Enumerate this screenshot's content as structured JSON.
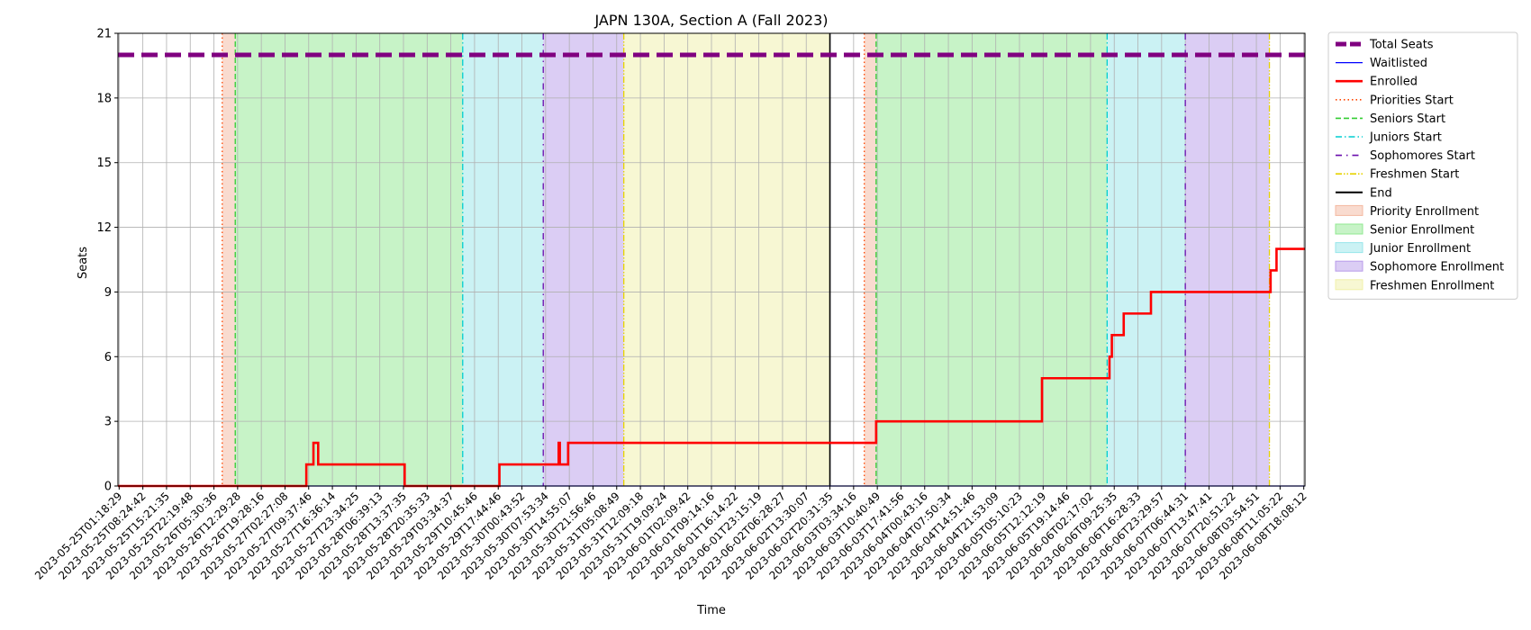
{
  "chart_data": {
    "type": "line",
    "title": "JAPN 130A, Section A (Fall 2023)",
    "xlabel": "Time",
    "ylabel": "Seats",
    "ylim": [
      0,
      21
    ],
    "yticks": [
      0,
      3,
      6,
      9,
      12,
      15,
      18,
      21
    ],
    "x_tick_labels": [
      "2023-05-25T01:18:29",
      "2023-05-25T08:24:42",
      "2023-05-25T15:21:35",
      "2023-05-25T22:19:48",
      "2023-05-26T05:30:36",
      "2023-05-26T12:29:28",
      "2023-05-26T19:28:16",
      "2023-05-27T02:27:08",
      "2023-05-27T09:37:46",
      "2023-05-27T16:36:14",
      "2023-05-27T23:34:25",
      "2023-05-28T06:39:13",
      "2023-05-28T13:37:35",
      "2023-05-28T20:35:33",
      "2023-05-29T03:34:37",
      "2023-05-29T10:45:46",
      "2023-05-29T17:44:46",
      "2023-05-30T00:43:52",
      "2023-05-30T07:53:34",
      "2023-05-30T14:55:07",
      "2023-05-30T21:56:46",
      "2023-05-31T05:08:49",
      "2023-05-31T12:09:18",
      "2023-05-31T19:09:24",
      "2023-06-01T02:09:42",
      "2023-06-01T09:14:16",
      "2023-06-01T16:14:22",
      "2023-06-01T23:15:19",
      "2023-06-02T06:28:27",
      "2023-06-02T13:30:07",
      "2023-06-02T20:31:35",
      "2023-06-03T03:34:16",
      "2023-06-03T10:40:49",
      "2023-06-03T17:41:56",
      "2023-06-04T00:43:16",
      "2023-06-04T07:50:34",
      "2023-06-04T14:51:46",
      "2023-06-04T21:53:09",
      "2023-06-05T05:10:23",
      "2023-06-05T12:12:19",
      "2023-06-05T19:14:46",
      "2023-06-06T02:17:02",
      "2023-06-06T09:25:35",
      "2023-06-06T16:28:33",
      "2023-06-06T23:29:57",
      "2023-06-07T06:44:31",
      "2023-06-07T13:47:41",
      "2023-06-07T20:51:22",
      "2023-06-08T03:54:51",
      "2023-06-08T11:05:22",
      "2023-06-08T18:08:12"
    ],
    "x_index_range": [
      -0.05,
      50.05
    ],
    "grid": true,
    "legend_placement": "outside-right",
    "series": [
      {
        "name": "Total Seats",
        "color": "#800080",
        "style": "dashed-thick",
        "points": [
          [
            -0.05,
            20
          ],
          [
            50.05,
            20
          ]
        ]
      },
      {
        "name": "Waitlisted",
        "color": "#0000ff",
        "style": "solid-thin",
        "points": [
          [
            -0.05,
            0
          ],
          [
            50.05,
            0
          ]
        ]
      },
      {
        "name": "Enrolled",
        "color": "#ff0000",
        "style": "solid-thick",
        "points": [
          [
            -0.05,
            0
          ],
          [
            7.9,
            0
          ],
          [
            7.9,
            1
          ],
          [
            8.2,
            1
          ],
          [
            8.2,
            2
          ],
          [
            8.4,
            2
          ],
          [
            8.4,
            1
          ],
          [
            12.05,
            1
          ],
          [
            12.05,
            0
          ],
          [
            16.05,
            0
          ],
          [
            16.05,
            1
          ],
          [
            18.55,
            1
          ],
          [
            18.55,
            2
          ],
          [
            18.6,
            2
          ],
          [
            18.6,
            1
          ],
          [
            18.95,
            1
          ],
          [
            18.95,
            2
          ],
          [
            31.95,
            2
          ],
          [
            31.95,
            3
          ],
          [
            38.95,
            3
          ],
          [
            38.95,
            5
          ],
          [
            41.8,
            5
          ],
          [
            41.8,
            6
          ],
          [
            41.9,
            6
          ],
          [
            41.9,
            7
          ],
          [
            42.4,
            7
          ],
          [
            42.4,
            8
          ],
          [
            43.55,
            8
          ],
          [
            43.55,
            9
          ],
          [
            48.6,
            9
          ],
          [
            48.6,
            10
          ],
          [
            48.85,
            10
          ],
          [
            48.85,
            11
          ],
          [
            50.05,
            11
          ]
        ]
      }
    ],
    "phases": [
      {
        "name": "Priority Enrollment",
        "color": "#f4b8a0",
        "ranges": [
          [
            4.35,
            4.9
          ],
          [
            31.45,
            31.95
          ]
        ]
      },
      {
        "name": "Senior Enrollment",
        "color": "#90e890",
        "ranges": [
          [
            4.9,
            14.5
          ],
          [
            31.95,
            41.7
          ]
        ]
      },
      {
        "name": "Junior Enrollment",
        "color": "#98e6ea",
        "ranges": [
          [
            14.5,
            17.9
          ],
          [
            41.7,
            45.0
          ]
        ]
      },
      {
        "name": "Sophomore Enrollment",
        "color": "#b89bea",
        "ranges": [
          [
            17.9,
            21.3
          ],
          [
            45.0,
            48.55
          ]
        ]
      },
      {
        "name": "Freshmen Enrollment",
        "color": "#f0f0a8",
        "ranges": [
          [
            21.3,
            30.0
          ]
        ]
      }
    ],
    "markers": [
      {
        "name": "Priorities Start",
        "color": "#ff4500",
        "style": "dotted",
        "x": [
          4.35,
          31.45
        ]
      },
      {
        "name": "Seniors Start",
        "color": "#32cd32",
        "style": "dashed",
        "x": [
          4.9,
          31.95
        ]
      },
      {
        "name": "Juniors Start",
        "color": "#00ced1",
        "style": "dashdot",
        "x": [
          14.5,
          41.7
        ]
      },
      {
        "name": "Sophomores Start",
        "color": "#6a0dad",
        "style": "loose-dashdot",
        "x": [
          17.9,
          45.0
        ]
      },
      {
        "name": "Freshmen Start",
        "color": "#e6d200",
        "style": "dashdotdot",
        "x": [
          21.3,
          48.55
        ]
      },
      {
        "name": "End",
        "color": "#000000",
        "style": "solid",
        "x": [
          30.0
        ]
      }
    ],
    "legend": [
      "Total Seats",
      "Waitlisted",
      "Enrolled",
      "Priorities Start",
      "Seniors Start",
      "Juniors Start",
      "Sophomores Start",
      "Freshmen Start",
      "End",
      "Priority Enrollment",
      "Senior Enrollment",
      "Junior Enrollment",
      "Sophomore Enrollment",
      "Freshmen Enrollment"
    ]
  }
}
